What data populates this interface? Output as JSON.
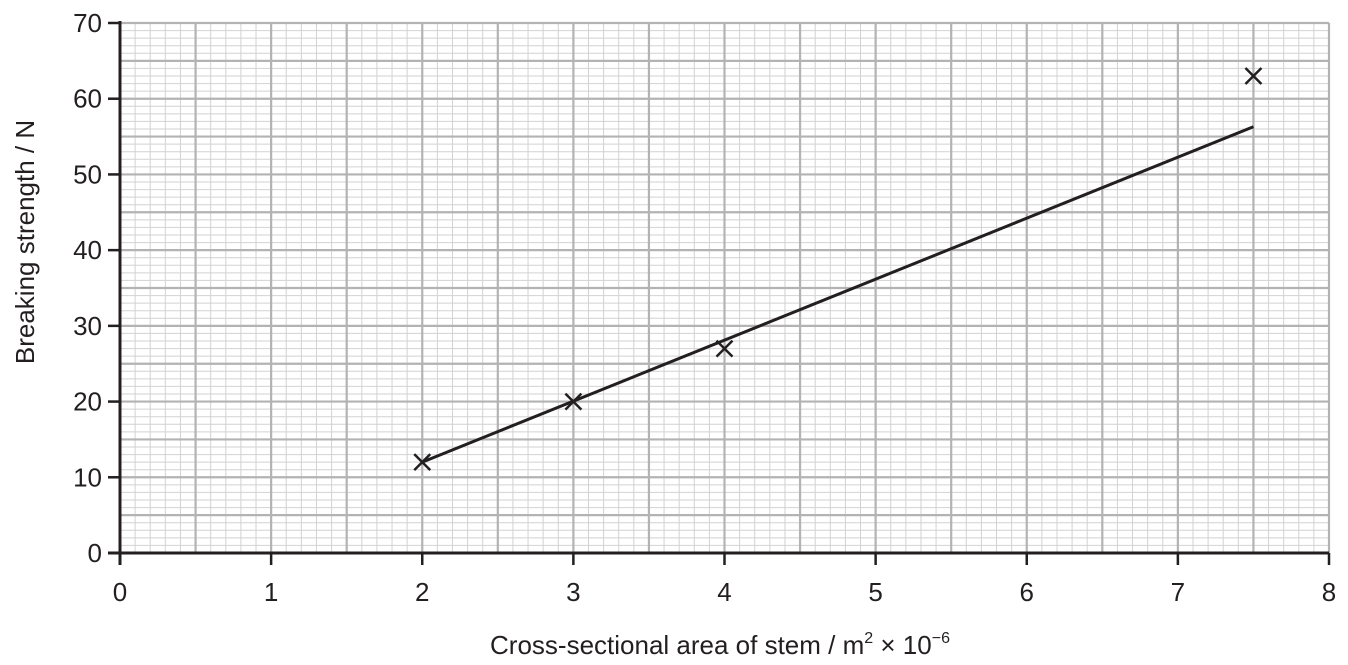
{
  "chart_data": {
    "type": "scatter",
    "title": "",
    "xlabel": "Cross-sectional area of stem / m",
    "xlabel_sup1": "2",
    "xlabel_mid": " × 10",
    "xlabel_sup2": "−6",
    "ylabel": "Breaking strength / N",
    "xlim": [
      0,
      8
    ],
    "ylim": [
      0,
      70
    ],
    "xticks": [
      "0",
      "1",
      "2",
      "3",
      "4",
      "5",
      "6",
      "7",
      "8"
    ],
    "yticks": [
      "0",
      "10",
      "20",
      "30",
      "40",
      "50",
      "60",
      "70"
    ],
    "grid": true,
    "legend": "none",
    "series": [
      {
        "marker": "x",
        "points": [
          {
            "x": 2,
            "y": 12
          },
          {
            "x": 3,
            "y": 20
          },
          {
            "x": 4,
            "y": 27
          },
          {
            "x": 7.5,
            "y": 63
          }
        ]
      }
    ],
    "fit_line": {
      "x": [
        2,
        7.5
      ],
      "y": [
        12,
        56.3
      ]
    },
    "colors": {
      "grid_major": "#b3b3b3",
      "grid_minor": "#d2d2d2",
      "ink": "#231f20"
    }
  }
}
